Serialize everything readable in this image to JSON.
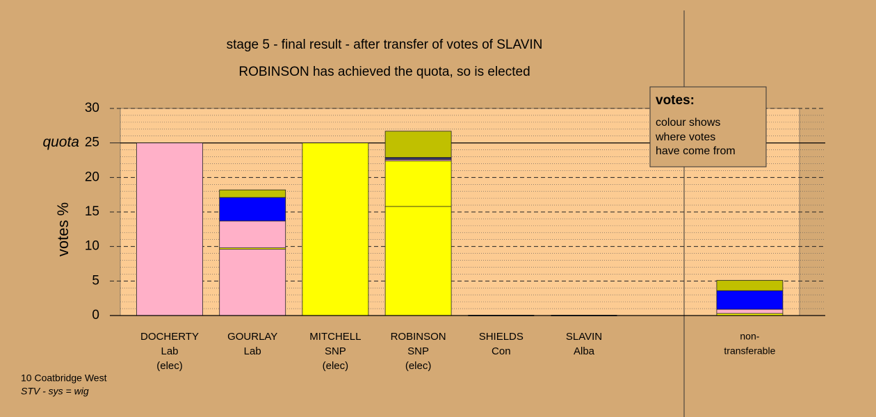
{
  "chart_data": {
    "type": "stacked_bar",
    "title": "stage 5 - final result - after transfer of votes of SLAVIN",
    "subtitle": "ROBINSON has achieved the quota, so is elected",
    "y_label": "votes %",
    "ylim": [
      0,
      30
    ],
    "yticks": [
      0,
      5,
      10,
      15,
      20,
      25,
      30
    ],
    "minor_yticks": [
      1,
      2,
      3,
      4,
      6,
      7,
      8,
      9,
      11,
      12,
      13,
      14,
      16,
      17,
      18,
      19,
      21,
      22,
      23,
      24,
      26,
      27,
      28,
      29
    ],
    "quota": {
      "value": 25,
      "label": "quota"
    },
    "candidates": [
      {
        "name": "DOCHERTY",
        "party": "Lab",
        "status": "(elec)",
        "segments": [
          {
            "color": "#ffb0c8",
            "value": 25
          }
        ]
      },
      {
        "name": "GOURLAY",
        "party": "Lab",
        "segments": [
          {
            "color": "#ffb0c8",
            "value": 9.6
          },
          {
            "color": "#ffff00",
            "value": 0.2
          },
          {
            "color": "#ffb0c8",
            "value": 3.9
          },
          {
            "color": "#0000ff",
            "value": 3.4
          },
          {
            "color": "#c0c000",
            "value": 1.1
          }
        ]
      },
      {
        "name": "MITCHELL",
        "party": "SNP",
        "status": "(elec)",
        "segments": [
          {
            "color": "#ffff00",
            "value": 25
          }
        ]
      },
      {
        "name": "ROBINSON",
        "party": "SNP",
        "status": "(elec)",
        "segments": [
          {
            "color": "#ffff00",
            "value": 15.8
          },
          {
            "color": "#ffff00",
            "value": 6.6
          },
          {
            "color": "#ffb0c8",
            "value": 0.2
          },
          {
            "color": "#333366",
            "value": 0.3
          },
          {
            "color": "#c0c000",
            "value": 3.8
          }
        ]
      },
      {
        "name": "SHIELDS",
        "party": "Con",
        "segments": [
          {
            "color": "#0000ff",
            "value": 0
          }
        ]
      },
      {
        "name": "SLAVIN",
        "party": "Alba",
        "segments": [
          {
            "color": "#c0c000",
            "value": 0
          }
        ]
      }
    ],
    "non_transferable": {
      "label_lines": [
        "non-",
        "transferable"
      ],
      "segments": [
        {
          "color": "#ffff00",
          "value": 0.3
        },
        {
          "color": "#ffb0c8",
          "value": 0.6
        },
        {
          "color": "#0000ff",
          "value": 2.7
        },
        {
          "color": "#c0c000",
          "value": 1.5
        }
      ]
    },
    "legend": {
      "title": "votes:",
      "lines": [
        "colour shows",
        "where votes",
        "have come from"
      ]
    },
    "footer": {
      "ward": "10 Coatbridge West",
      "system": "STV - sys = wig"
    }
  }
}
